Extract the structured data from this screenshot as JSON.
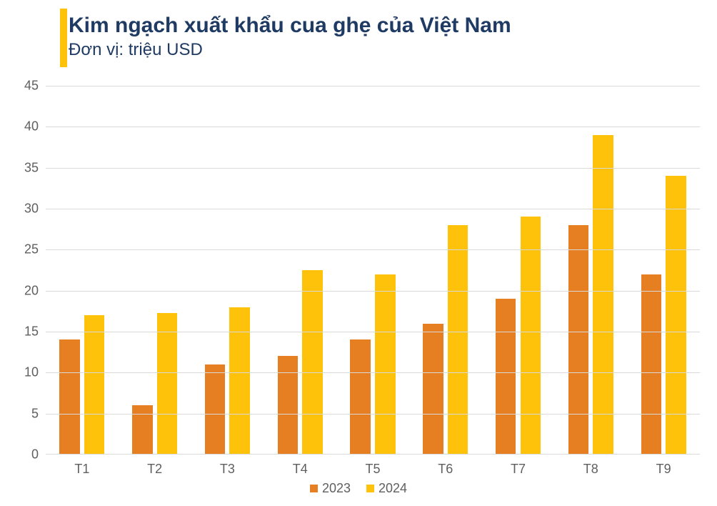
{
  "chart": {
    "type": "bar",
    "title": "Kim ngạch xuất khẩu cua ghẹ của Việt Nam",
    "subtitle": "Đơn vị: triệu USD",
    "title_color": "#1f3a63",
    "accent_color": "#ffc20a",
    "title_fontsize": 30,
    "subtitle_fontsize": 24,
    "label_fontsize": 18,
    "background_color": "#ffffff",
    "grid_color": "#d9d9d9",
    "categories": [
      "T1",
      "T2",
      "T3",
      "T4",
      "T5",
      "T6",
      "T7",
      "T8",
      "T9"
    ],
    "series": [
      {
        "name": "2023",
        "color": "#e67e22",
        "values": [
          14,
          6,
          11,
          12,
          14,
          16,
          19,
          28,
          22
        ]
      },
      {
        "name": "2024",
        "color": "#ffc20a",
        "values": [
          17,
          17.3,
          18,
          22.5,
          22,
          28,
          29,
          39,
          34
        ]
      }
    ],
    "ylim": [
      0,
      45
    ],
    "ytick_step": 5,
    "yticks": [
      0,
      5,
      10,
      15,
      20,
      25,
      30,
      35,
      40,
      45
    ],
    "bar_width_ratio": 0.28,
    "bar_gap_ratio": 0.06,
    "legend_position": "bottom-center"
  }
}
